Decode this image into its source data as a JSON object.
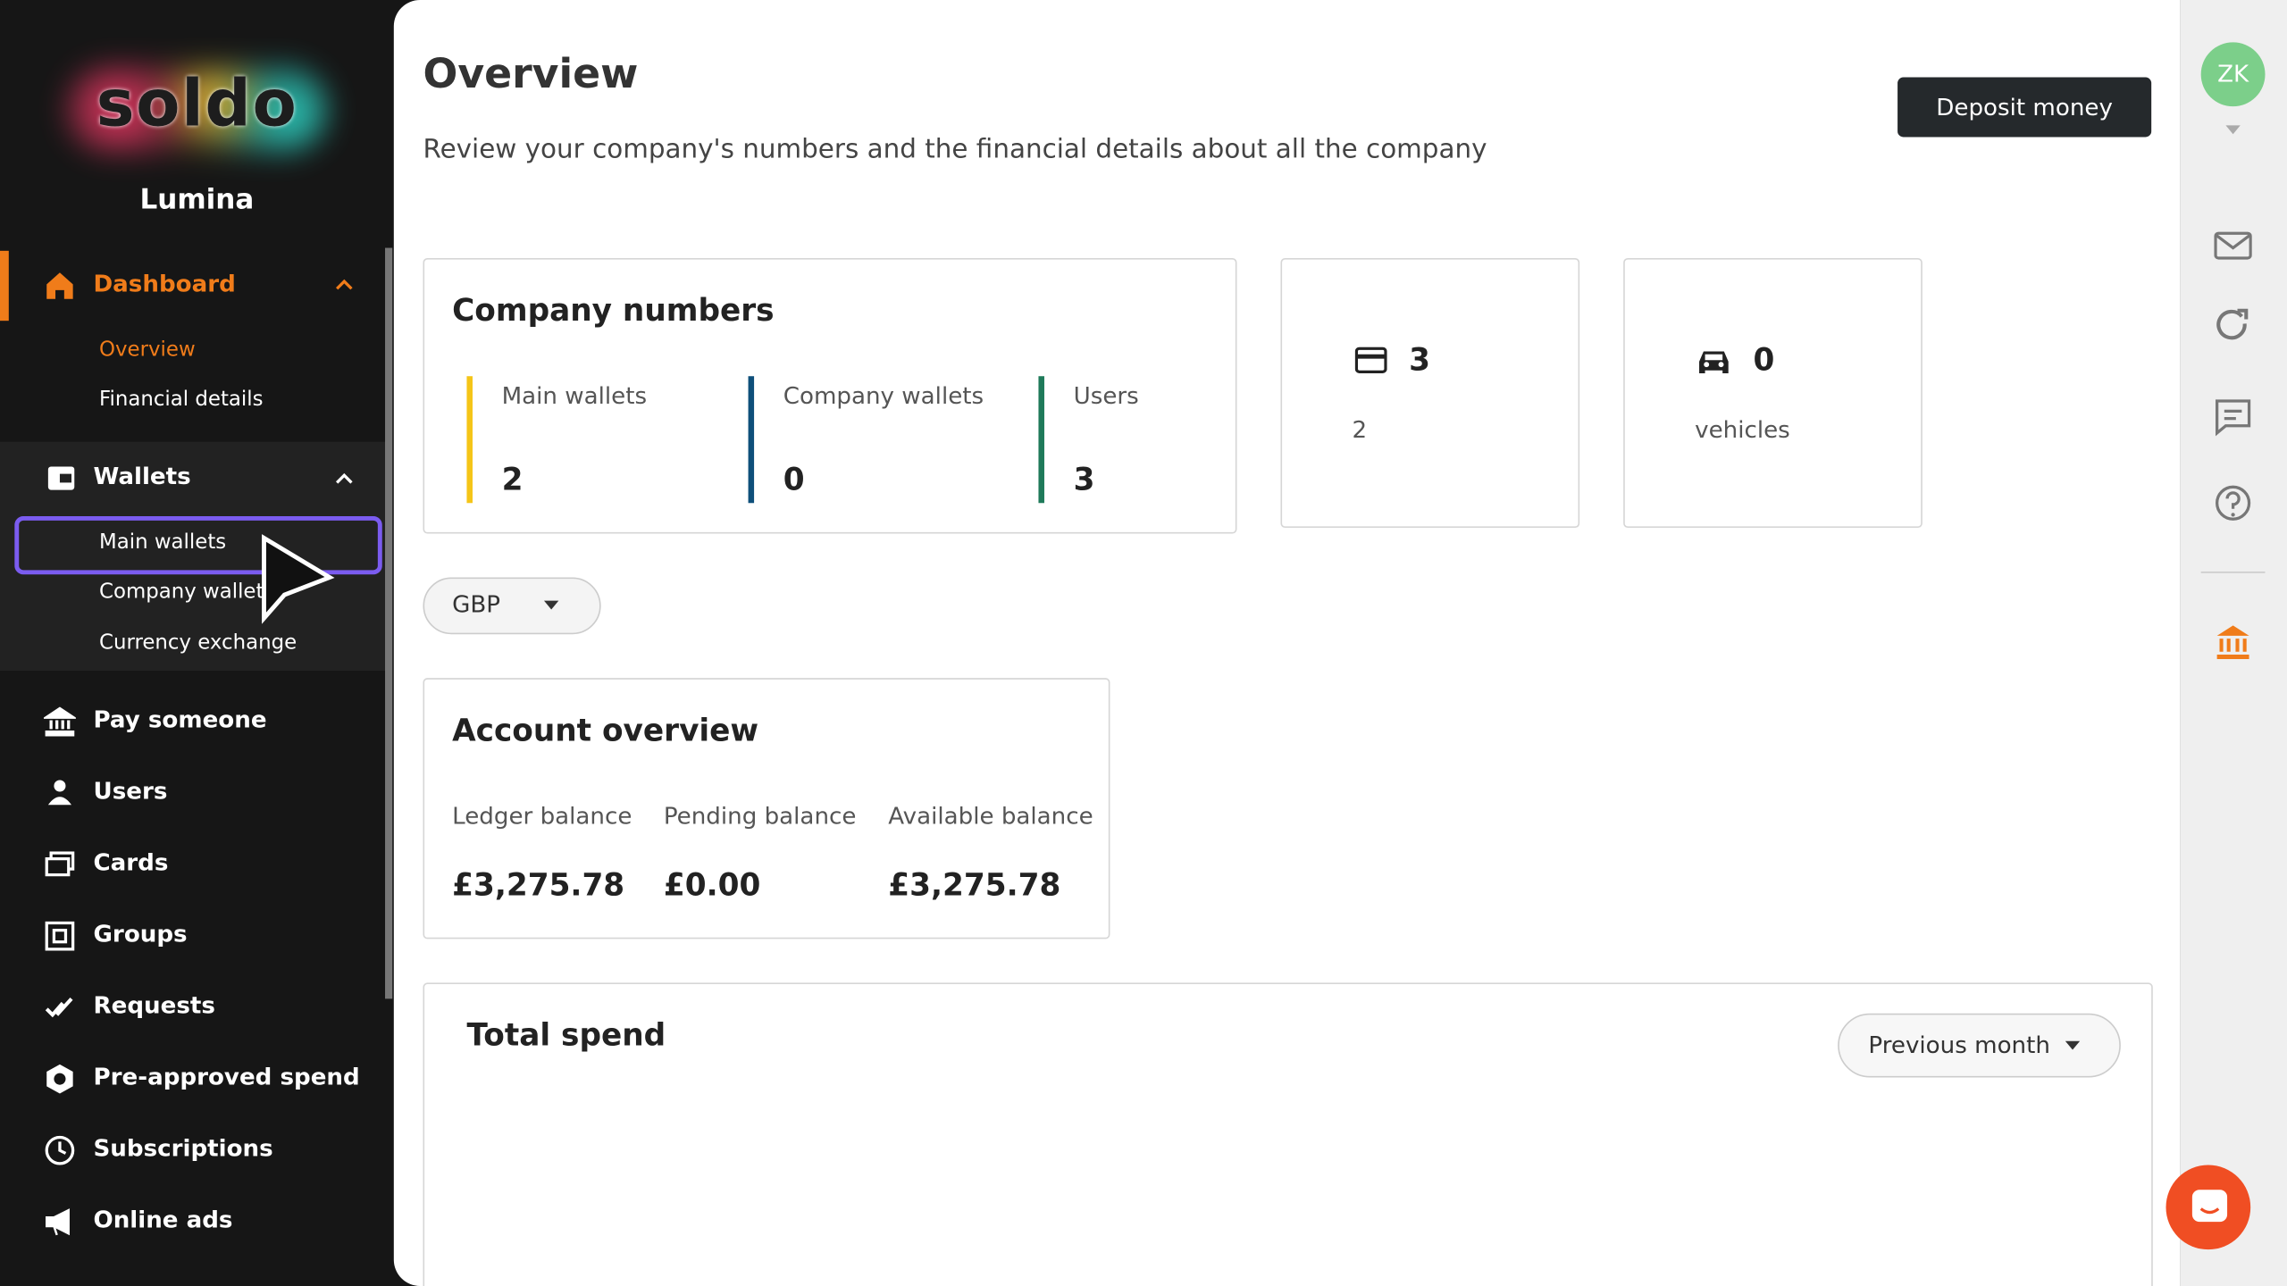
{
  "sidebar": {
    "brand": "soldo",
    "organization": "Lumina",
    "nav": [
      {
        "label": "Dashboard",
        "children": [
          "Overview",
          "Financial details"
        ]
      },
      {
        "label": "Wallets",
        "children": [
          "Main wallets",
          "Company wallets",
          "Currency exchange"
        ]
      },
      {
        "label": "Pay someone"
      },
      {
        "label": "Users"
      },
      {
        "label": "Cards"
      },
      {
        "label": "Groups"
      },
      {
        "label": "Requests"
      },
      {
        "label": "Pre-approved spend"
      },
      {
        "label": "Subscriptions"
      },
      {
        "label": "Online ads"
      }
    ]
  },
  "header": {
    "title": "Overview",
    "subtitle": "Review your company's numbers and the financial details about all the company",
    "button": "Deposit money",
    "avatar": "ZK"
  },
  "company_numbers": {
    "title": "Company numbers",
    "items": [
      {
        "label": "Main wallets",
        "value": 2
      },
      {
        "label": "Company wallets",
        "value": 0
      },
      {
        "label": "Users",
        "value": 3
      }
    ]
  },
  "stat_cards": [
    {
      "value": 3,
      "label": "2"
    },
    {
      "value": 0,
      "label": "vehicles"
    }
  ],
  "currency": "GBP",
  "account_overview": {
    "title": "Account overview",
    "items": [
      {
        "label": "Ledger balance",
        "value": "£3,275.78"
      },
      {
        "label": "Pending balance",
        "value": "£0.00"
      },
      {
        "label": "Available balance",
        "value": "£3,275.78"
      }
    ]
  },
  "total_spend": {
    "title": "Total spend",
    "period": "Previous month"
  }
}
